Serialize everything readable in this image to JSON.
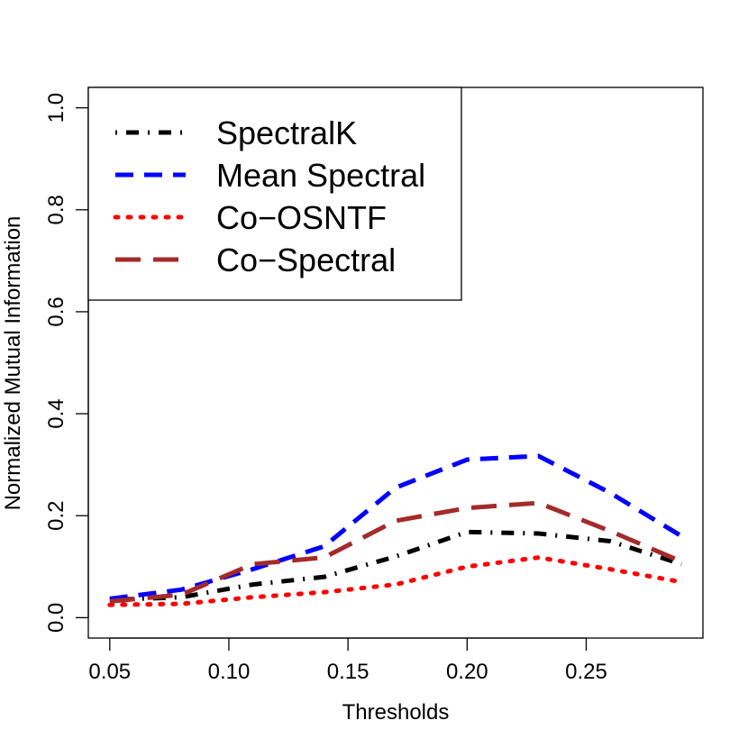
{
  "chart_data": {
    "type": "line",
    "xlabel": "Thresholds",
    "ylabel": "Normalized Mutual Information",
    "xlim": [
      0.041,
      0.299
    ],
    "ylim": [
      -0.04,
      1.04
    ],
    "x_ticks": [
      "0.05",
      "0.10",
      "0.15",
      "0.20",
      "0.25"
    ],
    "y_ticks": [
      "0.0",
      "0.2",
      "0.4",
      "0.6",
      "0.8",
      "1.0"
    ],
    "legend_position": "top-left",
    "grid": false,
    "x": [
      0.05,
      0.08,
      0.11,
      0.14,
      0.17,
      0.2,
      0.23,
      0.26,
      0.29
    ],
    "series": [
      {
        "name": "SpectralK",
        "color": "#000000",
        "line_style": "dotdash",
        "values": [
          0.035,
          0.04,
          0.065,
          0.08,
          0.12,
          0.168,
          0.165,
          0.15,
          0.105
        ]
      },
      {
        "name": "Mean Spectral",
        "color": "#0000ff",
        "line_style": "dashed",
        "values": [
          0.037,
          0.055,
          0.095,
          0.14,
          0.255,
          0.31,
          0.317,
          0.245,
          0.16
        ]
      },
      {
        "name": "Co−OSNTF",
        "color": "#ff0000",
        "line_style": "dotted",
        "values": [
          0.025,
          0.027,
          0.04,
          0.05,
          0.065,
          0.1,
          0.118,
          0.095,
          0.07
        ]
      },
      {
        "name": "Co−Spectral",
        "color": "#a52a2a",
        "line_style": "longdash",
        "values": [
          0.032,
          0.045,
          0.105,
          0.118,
          0.19,
          0.215,
          0.225,
          0.17,
          0.11
        ]
      }
    ]
  }
}
